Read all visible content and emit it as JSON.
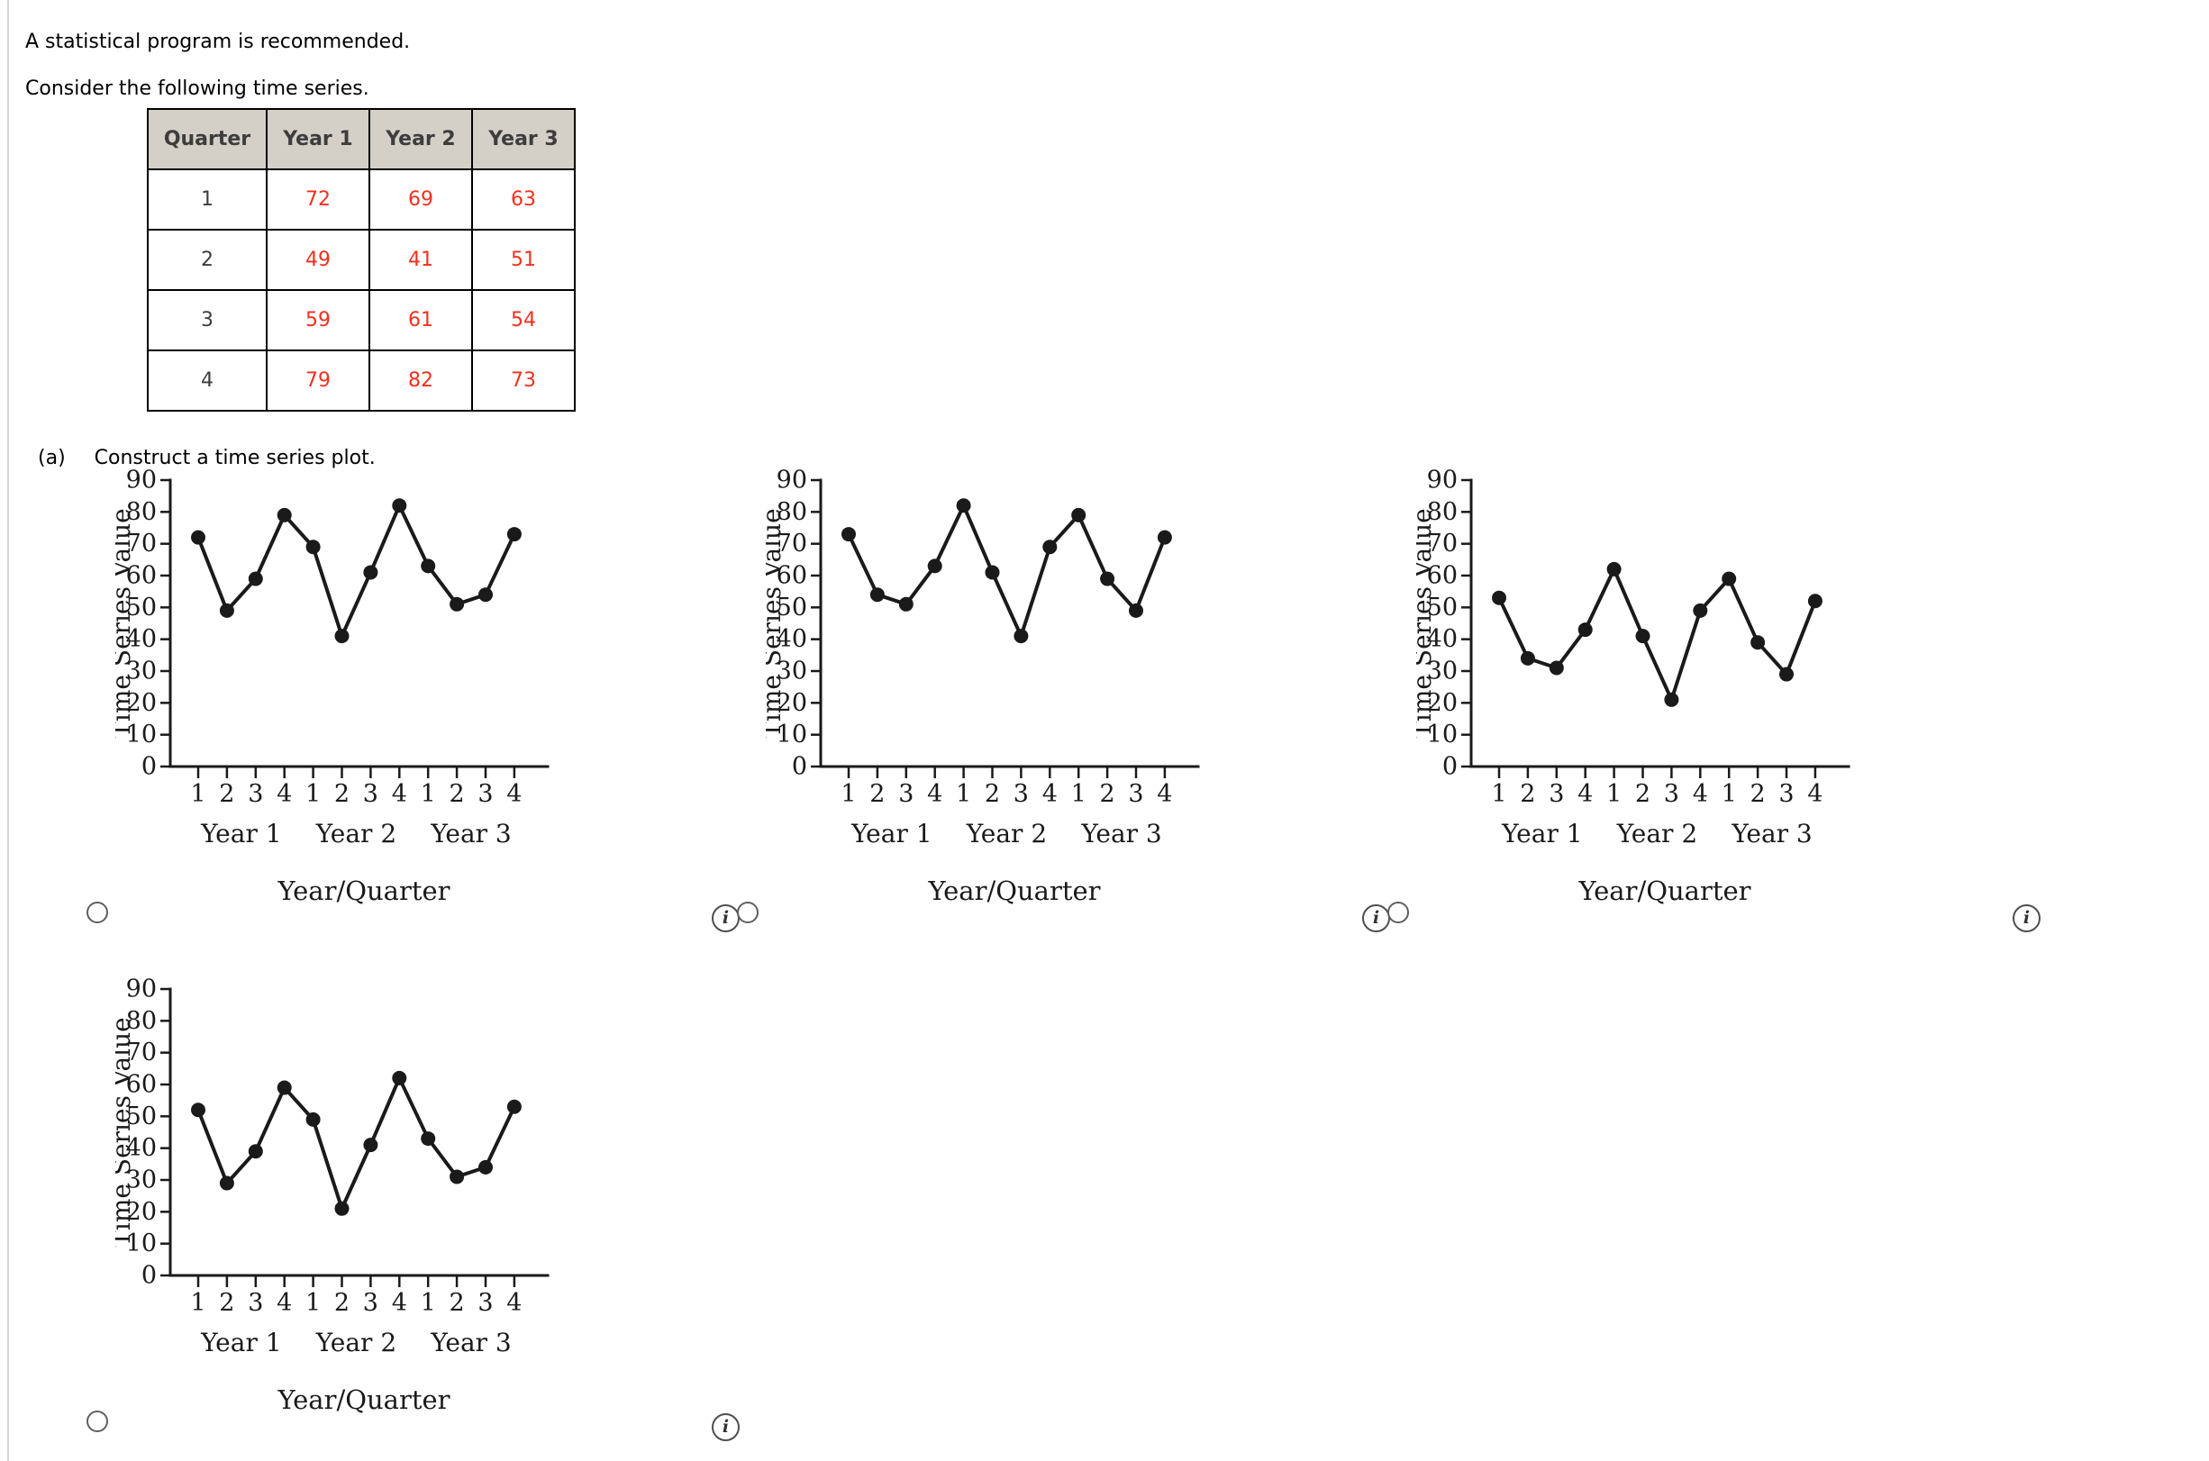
{
  "page": {
    "note": "A statistical program is recommended.",
    "intro": "Consider the following time series.",
    "part_label": "(a)",
    "part_question": "Construct a time series plot."
  },
  "table": {
    "headers": [
      "Quarter",
      "Year 1",
      "Year 2",
      "Year 3"
    ],
    "rows": [
      [
        "1",
        "72",
        "69",
        "63"
      ],
      [
        "2",
        "49",
        "41",
        "51"
      ],
      [
        "3",
        "59",
        "61",
        "54"
      ],
      [
        "4",
        "79",
        "82",
        "73"
      ]
    ],
    "value_color": "#f1301e",
    "header_bg": "#d4d0c8"
  },
  "icons": {
    "info": "i"
  },
  "options": {
    "count": 4,
    "selected": null
  },
  "chart_data": [
    {
      "type": "line",
      "option": 1,
      "values": [
        72,
        49,
        59,
        79,
        69,
        41,
        61,
        82,
        63,
        51,
        54,
        73
      ],
      "x_tick_labels": [
        "1",
        "2",
        "3",
        "4",
        "1",
        "2",
        "3",
        "4",
        "1",
        "2",
        "3",
        "4"
      ],
      "group_labels": [
        "Year 1",
        "Year 2",
        "Year 3"
      ],
      "ylabel": "Time Series Value",
      "xlabel": "Year/Quarter",
      "ylim": [
        0,
        90
      ],
      "ytick_step": 10,
      "grid": false,
      "marker": "filled-circle",
      "line_color": "#1a1a1a"
    },
    {
      "type": "line",
      "option": 2,
      "values": [
        73,
        54,
        51,
        63,
        82,
        61,
        41,
        69,
        79,
        59,
        49,
        72
      ],
      "x_tick_labels": [
        "1",
        "2",
        "3",
        "4",
        "1",
        "2",
        "3",
        "4",
        "1",
        "2",
        "3",
        "4"
      ],
      "group_labels": [
        "Year 1",
        "Year 2",
        "Year 3"
      ],
      "ylabel": "Time Series Value",
      "xlabel": "Year/Quarter",
      "ylim": [
        0,
        90
      ],
      "ytick_step": 10,
      "grid": false,
      "marker": "filled-circle",
      "line_color": "#1a1a1a"
    },
    {
      "type": "line",
      "option": 3,
      "values": [
        53,
        34,
        31,
        43,
        62,
        41,
        21,
        49,
        59,
        39,
        29,
        52
      ],
      "x_tick_labels": [
        "1",
        "2",
        "3",
        "4",
        "1",
        "2",
        "3",
        "4",
        "1",
        "2",
        "3",
        "4"
      ],
      "group_labels": [
        "Year 1",
        "Year 2",
        "Year 3"
      ],
      "ylabel": "Time Series Value",
      "xlabel": "Year/Quarter",
      "ylim": [
        0,
        90
      ],
      "ytick_step": 10,
      "grid": false,
      "marker": "filled-circle",
      "line_color": "#1a1a1a"
    },
    {
      "type": "line",
      "option": 4,
      "values": [
        52,
        29,
        39,
        59,
        49,
        21,
        41,
        62,
        43,
        31,
        34,
        53
      ],
      "x_tick_labels": [
        "1",
        "2",
        "3",
        "4",
        "1",
        "2",
        "3",
        "4",
        "1",
        "2",
        "3",
        "4"
      ],
      "group_labels": [
        "Year 1",
        "Year 2",
        "Year 3"
      ],
      "ylabel": "Time Series Value",
      "xlabel": "Year/Quarter",
      "ylim": [
        0,
        90
      ],
      "ytick_step": 10,
      "grid": false,
      "marker": "filled-circle",
      "line_color": "#1a1a1a"
    }
  ]
}
